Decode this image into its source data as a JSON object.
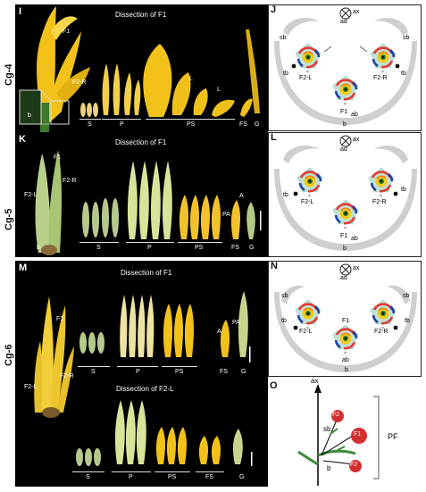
{
  "row_labels": [
    "Cg-4",
    "Cg-5",
    "Cg-6"
  ],
  "panels": {
    "I": {
      "letter": "I",
      "title": "Dissection of F1",
      "labels": {
        "F1": "F1",
        "F2R": "F2-R",
        "b": "b"
      },
      "groups": [
        "S",
        "P",
        "PS",
        "FS",
        "G"
      ],
      "extra": [
        "L",
        "L"
      ]
    },
    "K": {
      "letter": "K",
      "title": "Dissection of F1",
      "labels": {
        "F1": "F1",
        "F2L": "F2-L",
        "F2R": "F2-R",
        "b": "b",
        "A": "A",
        "PA": "PA"
      },
      "groups": [
        "S",
        "P",
        "PS",
        "FS",
        "G"
      ]
    },
    "M": {
      "letter": "M",
      "title": "Dissection of F1",
      "title2": "Dissection of F2-L",
      "labels": {
        "F1": "F1",
        "F2L": "F2-L",
        "F2R": "F2-R",
        "A": "A",
        "PA": "PA"
      },
      "groups": [
        "S",
        "P",
        "PS",
        "FS",
        "G"
      ],
      "groups2": [
        "S",
        "P",
        "PS",
        "FS",
        "G"
      ]
    }
  },
  "diagrams": {
    "J": {
      "letter": "J",
      "ax": "ax",
      "ad": "ad",
      "sb": "sb",
      "tb": "tb",
      "F2L": "F2-L",
      "F2R": "F2-R",
      "F1": "F1",
      "ab": "ab",
      "b": "b"
    },
    "L": {
      "letter": "L",
      "ax": "ax",
      "ad": "ad",
      "tb": "tb",
      "F2L": "F2-L",
      "F2R": "F2-R",
      "F1": "F1",
      "ab": "ab",
      "b": "b"
    },
    "N": {
      "letter": "N",
      "ax": "ax",
      "ad": "ad",
      "sb": "sb",
      "tb": "tb",
      "F2L": "F2-L",
      "F2R": "F2-R",
      "F1": "F1",
      "ab": "ab",
      "b": "b"
    }
  },
  "schematic": {
    "letter": "O",
    "ax": "ax",
    "sb": "sb",
    "b": "b",
    "F1": "F1",
    "F2_top": "F2",
    "F2_bottom": "F2",
    "PF": "PF"
  },
  "colors": {
    "flower_yellow": "#f0c419",
    "bract_gray": "#cfcfcf",
    "perianth_red": "#e53935",
    "perianth_blue": "#1e3fa8",
    "stamen_teal": "#9fd8c4",
    "center_green": "#2e7d32"
  }
}
